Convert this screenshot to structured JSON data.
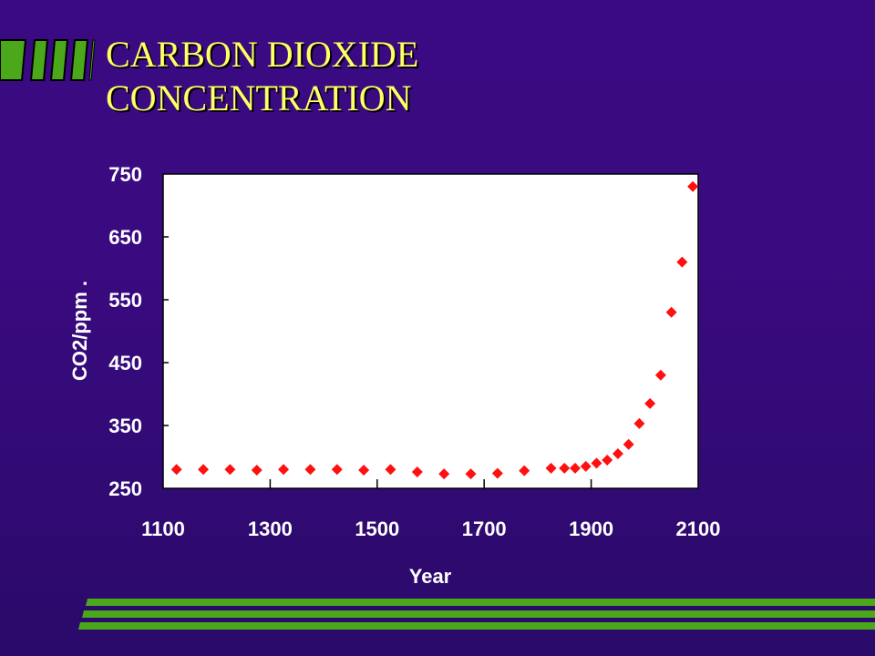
{
  "slide": {
    "title_line1": "CARBON DIOXIDE",
    "title_line2": "CONCENTRATION"
  },
  "colors": {
    "background": "#3a0a80",
    "title": "#ffff66",
    "accent_green": "#4aa81a",
    "marker": "#ff1010",
    "plot_background": "#ffffff"
  },
  "chart_data": {
    "type": "scatter",
    "xlabel": "Year",
    "ylabel": "CO2/ppm .",
    "xlim": [
      1100,
      2100
    ],
    "ylim": [
      250,
      750
    ],
    "x_ticks": [
      "1100",
      "1300",
      "1500",
      "1700",
      "1900",
      "2100"
    ],
    "y_ticks": [
      "250",
      "350",
      "450",
      "550",
      "650",
      "750"
    ],
    "marker": "diamond",
    "grid": false,
    "series": [
      {
        "x": [
          1125,
          1175,
          1225,
          1275,
          1325,
          1375,
          1425,
          1475,
          1525,
          1575,
          1625,
          1675,
          1725,
          1775,
          1825,
          1850,
          1870,
          1890,
          1910,
          1930,
          1950,
          1970,
          1990,
          2010,
          2030,
          2050,
          2070,
          2090
        ],
        "y": [
          280,
          280,
          280,
          279,
          280,
          280,
          280,
          279,
          280,
          276,
          273,
          273,
          274,
          278,
          282,
          282,
          282,
          285,
          290,
          295,
          305,
          320,
          353,
          385,
          430,
          530,
          610,
          730
        ]
      }
    ]
  }
}
